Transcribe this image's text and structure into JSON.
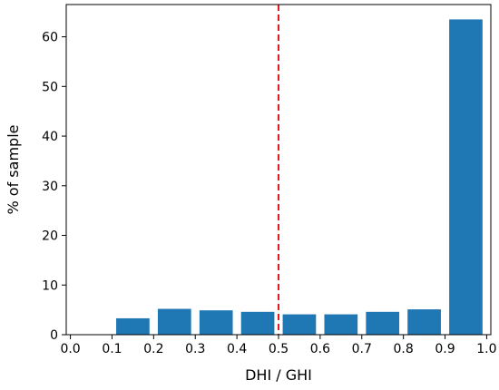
{
  "chart_data": {
    "type": "bar",
    "title": "",
    "xlabel": "DHI / GHI",
    "ylabel": "% of sample",
    "xlim": [
      -0.01,
      1.01
    ],
    "ylim": [
      0,
      66.5
    ],
    "xticks": [
      0.0,
      0.1,
      0.2,
      0.3,
      0.4,
      0.5,
      0.6,
      0.7,
      0.8,
      0.9,
      1.0
    ],
    "xtick_labels": [
      "0.0",
      "0.1",
      "0.2",
      "0.3",
      "0.4",
      "0.5",
      "0.6",
      "0.7",
      "0.8",
      "0.9",
      "1.0"
    ],
    "yticks": [
      0,
      10,
      20,
      30,
      40,
      50,
      60
    ],
    "ytick_labels": [
      "0",
      "10",
      "20",
      "30",
      "40",
      "50",
      "60"
    ],
    "bins": [
      {
        "from": 0.0,
        "to": 0.1,
        "value": 0.0
      },
      {
        "from": 0.1,
        "to": 0.2,
        "value": 3.3
      },
      {
        "from": 0.2,
        "to": 0.3,
        "value": 5.2
      },
      {
        "from": 0.3,
        "to": 0.4,
        "value": 4.9
      },
      {
        "from": 0.4,
        "to": 0.5,
        "value": 4.6
      },
      {
        "from": 0.5,
        "to": 0.6,
        "value": 4.1
      },
      {
        "from": 0.6,
        "to": 0.7,
        "value": 4.1
      },
      {
        "from": 0.7,
        "to": 0.8,
        "value": 4.6
      },
      {
        "from": 0.8,
        "to": 0.9,
        "value": 5.1
      },
      {
        "from": 0.9,
        "to": 1.0,
        "value": 63.5
      }
    ],
    "bar_width_fraction": 0.8,
    "reference_line": {
      "x": 0.5,
      "style": "dashed",
      "color": "#e41a1c"
    },
    "bar_color": "#1f77b4",
    "grid": false,
    "legend": "none"
  }
}
